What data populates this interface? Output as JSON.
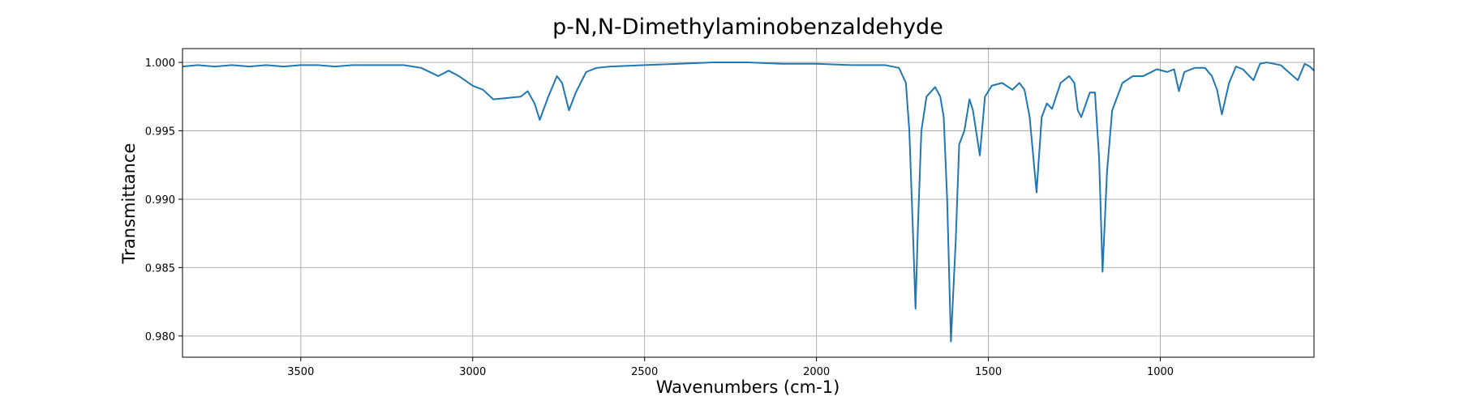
{
  "chart_data": {
    "type": "line",
    "title": "p-N,N-Dimethylaminobenzaldehyde",
    "x_label": "Wavenumbers (cm-1)",
    "y_label": "Transmittance",
    "xlim": [
      3844,
      553
    ],
    "ylim": [
      0.97845,
      1.00101
    ],
    "xticks": [
      3500,
      3000,
      2500,
      2000,
      1500,
      1000
    ],
    "yticks": [
      {
        "value": 0.98,
        "label": "0.980"
      },
      {
        "value": 0.985,
        "label": "0.985"
      },
      {
        "value": 0.99,
        "label": "0.990"
      },
      {
        "value": 0.995,
        "label": "0.995"
      },
      {
        "value": 1.0,
        "label": "1.000"
      }
    ],
    "grid": true,
    "color": "#1f77b4",
    "x": [
      3844,
      3800,
      3750,
      3700,
      3650,
      3600,
      3550,
      3500,
      3450,
      3400,
      3350,
      3300,
      3250,
      3200,
      3150,
      3100,
      3070,
      3040,
      3000,
      2970,
      2940,
      2900,
      2860,
      2840,
      2820,
      2805,
      2780,
      2755,
      2740,
      2720,
      2700,
      2670,
      2640,
      2600,
      2500,
      2400,
      2300,
      2200,
      2100,
      2000,
      1900,
      1800,
      1760,
      1740,
      1730,
      1720,
      1712,
      1705,
      1695,
      1680,
      1655,
      1640,
      1630,
      1620,
      1609,
      1595,
      1585,
      1570,
      1555,
      1545,
      1525,
      1510,
      1490,
      1460,
      1430,
      1410,
      1395,
      1380,
      1360,
      1345,
      1330,
      1315,
      1290,
      1265,
      1250,
      1240,
      1230,
      1205,
      1190,
      1178,
      1168,
      1155,
      1140,
      1110,
      1080,
      1050,
      1010,
      980,
      960,
      946,
      930,
      900,
      870,
      850,
      835,
      821,
      800,
      780,
      760,
      729,
      710,
      690,
      650,
      600,
      580,
      565,
      553
    ],
    "values": [
      0.9997,
      0.9998,
      0.9997,
      0.9998,
      0.9997,
      0.9998,
      0.9997,
      0.9998,
      0.9998,
      0.9997,
      0.9998,
      0.9998,
      0.9998,
      0.9998,
      0.9996,
      0.999,
      0.9994,
      0.999,
      0.9983,
      0.998,
      0.9973,
      0.9974,
      0.9975,
      0.9979,
      0.997,
      0.9958,
      0.9975,
      0.999,
      0.9985,
      0.9965,
      0.9978,
      0.9993,
      0.9996,
      0.9997,
      0.9998,
      0.9999,
      1.0,
      1.0,
      0.9999,
      0.9999,
      0.9998,
      0.9998,
      0.9996,
      0.9985,
      0.995,
      0.988,
      0.982,
      0.988,
      0.995,
      0.9975,
      0.9982,
      0.9975,
      0.996,
      0.99,
      0.9796,
      0.987,
      0.994,
      0.995,
      0.9973,
      0.9965,
      0.9932,
      0.9975,
      0.9983,
      0.9985,
      0.998,
      0.9985,
      0.998,
      0.996,
      0.9905,
      0.996,
      0.997,
      0.9966,
      0.9985,
      0.999,
      0.9985,
      0.9965,
      0.996,
      0.9978,
      0.9978,
      0.993,
      0.9847,
      0.992,
      0.9965,
      0.9985,
      0.999,
      0.999,
      0.9995,
      0.9993,
      0.9995,
      0.9979,
      0.9993,
      0.9996,
      0.9996,
      0.999,
      0.998,
      0.9962,
      0.9985,
      0.9997,
      0.9995,
      0.9987,
      0.9999,
      1.0,
      0.9998,
      0.9987,
      0.9999,
      0.9997,
      0.9994
    ]
  }
}
